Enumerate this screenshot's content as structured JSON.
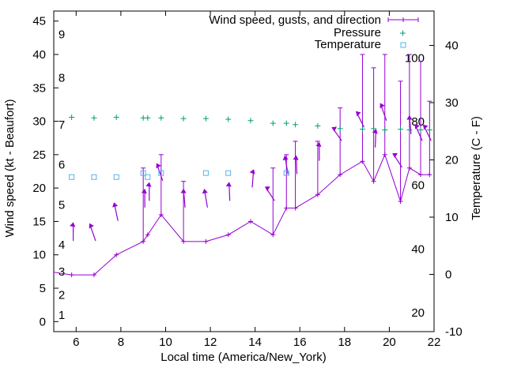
{
  "chart_data": {
    "type": "line",
    "title": "",
    "xlabel": "Local time (America/New_York)",
    "ylabel": "Wind speed (kt - Beaufort)",
    "y2label": "Temperature (C - F)",
    "xlim": [
      5,
      22
    ],
    "ylim": [
      -1.5,
      46.5
    ],
    "y2lim": [
      -10,
      46
    ],
    "x_ticks": [
      "6",
      "8",
      "10",
      "12",
      "14",
      "16",
      "18",
      "20",
      "22"
    ],
    "y_ticks": [
      "0",
      "5",
      "10",
      "15",
      "20",
      "25",
      "30",
      "35",
      "40",
      "45"
    ],
    "y2_ticks": [
      "-10",
      "0",
      "10",
      "20",
      "30",
      "40"
    ],
    "beaufort_labels": [
      {
        "text": "1",
        "y": 1.0
      },
      {
        "text": "2",
        "y": 4.0
      },
      {
        "text": "3",
        "y": 7.5
      },
      {
        "text": "4",
        "y": 11.5
      },
      {
        "text": "5",
        "y": 17.5
      },
      {
        "text": "6",
        "y": 23.5
      },
      {
        "text": "7",
        "y": 29.5
      },
      {
        "text": "8",
        "y": 36.5
      },
      {
        "text": "9",
        "y": 43.0
      }
    ],
    "fahrenheit_labels": [
      {
        "text": "20",
        "y": -6.7
      },
      {
        "text": "40",
        "y": 4.4
      },
      {
        "text": "60",
        "y": 15.6
      },
      {
        "text": "80",
        "y": 26.7
      },
      {
        "text": "100",
        "y": 37.8
      }
    ],
    "legend": {
      "position": "top-right",
      "entries": [
        {
          "label": "Wind speed, gusts, and direction",
          "color": "#9400d3"
        },
        {
          "label": "Pressure",
          "color": "#009e73"
        },
        {
          "label": "Temperature",
          "color": "#56b4e9"
        }
      ]
    },
    "series": [
      {
        "name": "Wind speed, gusts, and direction",
        "color": "#9400d3",
        "x": [
          4.8,
          5.8,
          6.8,
          7.8,
          9.0,
          9.2,
          9.8,
          10.8,
          11.8,
          12.8,
          13.8,
          14.8,
          15.4,
          15.8,
          16.8,
          17.8,
          18.8,
          19.3,
          19.8,
          20.5,
          20.9,
          21.4,
          21.8
        ],
        "y": [
          7.5,
          7.0,
          7.0,
          10.0,
          12.0,
          13.0,
          16.0,
          12.0,
          12.0,
          13.0,
          15.0,
          13.0,
          17.0,
          17.0,
          19.0,
          22.0,
          24.0,
          21.0,
          25.0,
          18.0,
          23.0,
          22.0,
          22.0
        ],
        "gust": [
          null,
          null,
          null,
          null,
          23.0,
          null,
          25.0,
          21.0,
          null,
          null,
          null,
          23.0,
          25.0,
          27.0,
          27.0,
          32.0,
          40.0,
          38.0,
          40.0,
          36.0,
          40.0,
          39.0,
          33.0
        ],
        "direction_deg": [
          null,
          10,
          330,
          345,
          10,
          10,
          330,
          0,
          350,
          5,
          20,
          300,
          350,
          5,
          10,
          295,
          315,
          15,
          330,
          300,
          0,
          320,
          315
        ]
      },
      {
        "name": "Pressure",
        "color": "#009e73",
        "x": [
          5.8,
          6.8,
          7.8,
          9.0,
          9.2,
          9.8,
          10.8,
          11.8,
          12.8,
          13.8,
          14.8,
          15.4,
          15.8,
          16.8,
          17.8,
          18.8,
          19.3,
          19.8,
          20.5,
          20.9,
          21.4,
          21.8
        ],
        "y": [
          30.6,
          30.5,
          30.6,
          30.5,
          30.5,
          30.5,
          30.4,
          30.4,
          30.3,
          30.1,
          29.7,
          29.7,
          29.5,
          29.3,
          28.9,
          28.8,
          28.9,
          28.7,
          28.8,
          28.7,
          28.7,
          28.7
        ]
      },
      {
        "name": "Temperature",
        "color": "#56b4e9",
        "axis": "y2",
        "x": [
          5.8,
          6.8,
          7.8,
          9.0,
          9.2,
          9.8,
          11.8,
          12.8,
          15.4
        ],
        "y": [
          17.0,
          17.0,
          17.0,
          17.7,
          17.0,
          17.7,
          17.7,
          17.7,
          17.7
        ]
      }
    ]
  }
}
